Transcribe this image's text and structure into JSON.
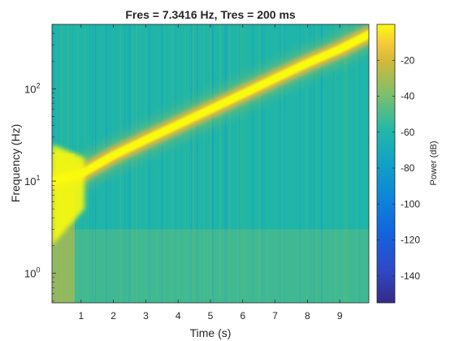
{
  "chart_data": {
    "type": "heatmap",
    "title": "Fres = 7.3416 Hz, Tres = 200 ms",
    "xlabel": "Time (s)",
    "ylabel": "Frequency (Hz)",
    "xlim": [
      0.1,
      9.9
    ],
    "ylim_log10": [
      -0.32,
      2.7
    ],
    "yscale": "log",
    "x_ticks": [
      1,
      2,
      3,
      4,
      5,
      6,
      7,
      8,
      9
    ],
    "x_tick_labels": [
      "1",
      "2",
      "3",
      "4",
      "5",
      "6",
      "7",
      "8",
      "9"
    ],
    "y_ticks": [
      1,
      10,
      100
    ],
    "y_tick_labels": [
      {
        "base": "10",
        "exp": "0"
      },
      {
        "base": "10",
        "exp": "1"
      },
      {
        "base": "10",
        "exp": "2"
      }
    ],
    "colorbar": {
      "label": "Power (dB)",
      "range": [
        -155,
        0
      ],
      "ticks": [
        -20,
        -40,
        -60,
        -80,
        -100,
        -120,
        -140
      ],
      "tick_labels": [
        "-20",
        "-40",
        "-60",
        "-80",
        "-100",
        "-120",
        "-140"
      ],
      "colormap": "parula"
    },
    "ridge": {
      "description_of_signal": "chirp",
      "time_s": [
        0.1,
        1,
        2,
        3,
        4,
        5,
        6,
        7,
        8,
        9,
        9.9
      ],
      "frequency_hz": [
        10,
        12,
        19,
        28,
        41,
        60,
        88,
        130,
        190,
        270,
        390
      ]
    },
    "grid": false,
    "legend": "none"
  },
  "colors": {
    "background_color": "#1fb5a9",
    "ridge_color": "#f9fb0e",
    "ridge_edge_color": "#f6b83a",
    "text_color": "#262626"
  }
}
